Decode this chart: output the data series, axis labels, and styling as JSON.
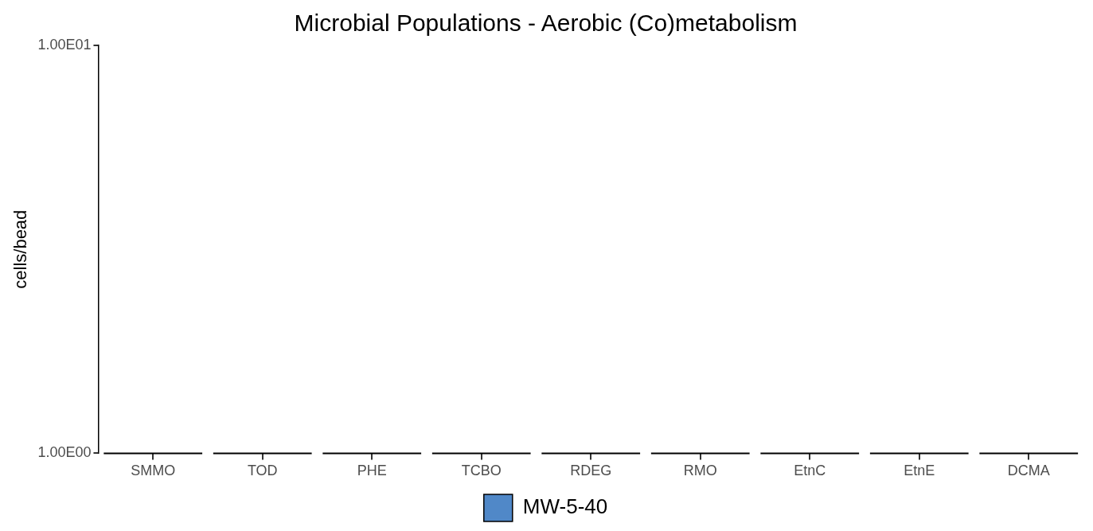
{
  "chart_data": {
    "type": "bar",
    "title": "Microbial Populations - Aerobic (Co)metabolism",
    "ylabel": "cells/bead",
    "categories": [
      "SMMO",
      "TOD",
      "PHE",
      "TCBO",
      "RDEG",
      "RMO",
      "EtnC",
      "EtnE",
      "DCMA"
    ],
    "series": [
      {
        "name": "MW-5-40",
        "color": "#5088c8",
        "values": [
          1,
          1,
          1,
          1,
          1,
          1,
          1,
          1,
          1
        ]
      }
    ],
    "log": true,
    "ylim": [
      1,
      10
    ],
    "yticks": [
      {
        "value": 1,
        "label": "1.00E00"
      },
      {
        "value": 10,
        "label": "1.00E01"
      }
    ],
    "grid": false,
    "legend": "bottom"
  }
}
